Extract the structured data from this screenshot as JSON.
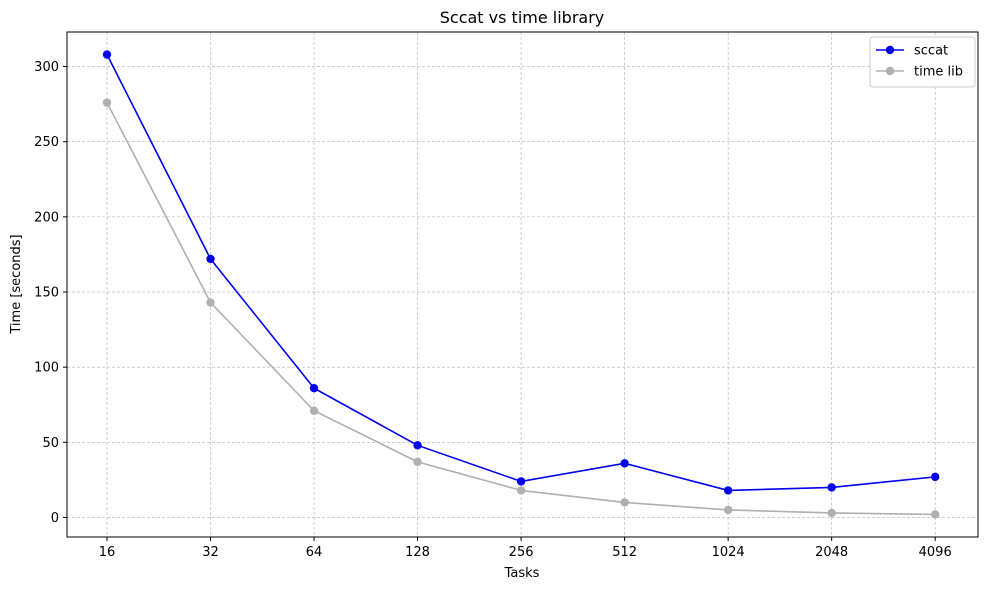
{
  "chart_data": {
    "type": "line",
    "title": "Sccat vs time library",
    "xlabel": "Tasks",
    "ylabel": "Time [seconds]",
    "categories": [
      "16",
      "32",
      "64",
      "128",
      "256",
      "512",
      "1024",
      "2048",
      "4096"
    ],
    "ylim": [
      -13,
      323
    ],
    "yticks": [
      0,
      50,
      100,
      150,
      200,
      250,
      300
    ],
    "grid": true,
    "legend_position": "top-right",
    "series": [
      {
        "name": "sccat",
        "color": "#0000ee",
        "values": [
          308,
          172,
          86,
          48,
          24,
          36,
          18,
          20,
          27
        ]
      },
      {
        "name": "time lib",
        "color": "#b0b0b0",
        "values": [
          276,
          143,
          71,
          37,
          18,
          10,
          5,
          3,
          2
        ]
      }
    ]
  }
}
